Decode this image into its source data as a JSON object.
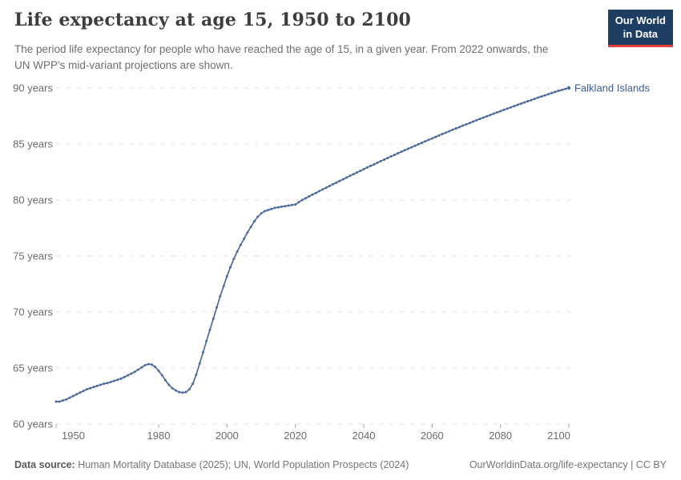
{
  "header": {
    "title": "Life expectancy at age 15, 1950 to 2100",
    "subtitle": "The period life expectancy for people who have reached the age of 15, in a given year. From 2022 onwards, the UN WPP's mid-variant projections are shown.",
    "logo": {
      "line1": "Our World",
      "line2": "in Data",
      "bg": "#1d3d63",
      "accent": "#e63e36"
    }
  },
  "footer": {
    "source_label": "Data source:",
    "source_text": " Human Mortality Database (2025); UN, World Population Prospects (2024)",
    "link_text": "OurWorldinData.org/life-expectancy | CC BY"
  },
  "chart_data": {
    "type": "line",
    "title": "Life expectancy at age 15, 1950 to 2100",
    "entity_label": "Falkland Islands",
    "color": "#4c6a9c",
    "entity_label_color": "#3b5b96",
    "grid_color": "#e0e0e0",
    "tick_text_color": "#6b6b6b",
    "tick_mark_color": "#a8a8a8",
    "grid": true,
    "legend_position": "end-of-line-label",
    "projection_from": 2022,
    "x_range": [
      1950,
      2100
    ],
    "y_range": [
      60,
      90
    ],
    "x_ticks": [
      1950,
      1980,
      2000,
      2020,
      2040,
      2060,
      2080,
      2100
    ],
    "y_ticks": [
      {
        "value": 60,
        "label": "60 years"
      },
      {
        "value": 65,
        "label": "65 years"
      },
      {
        "value": 70,
        "label": "70 years"
      },
      {
        "value": 75,
        "label": "75 years"
      },
      {
        "value": 80,
        "label": "80 years"
      },
      {
        "value": 85,
        "label": "85 years"
      },
      {
        "value": 90,
        "label": "90 years"
      }
    ],
    "series": [
      {
        "name": "Falkland Islands",
        "start_year": 1950,
        "values": [
          62.0,
          62.0,
          62.1,
          62.2,
          62.35,
          62.5,
          62.65,
          62.8,
          62.95,
          63.1,
          63.2,
          63.3,
          63.4,
          63.5,
          63.6,
          63.65,
          63.75,
          63.85,
          63.95,
          64.05,
          64.2,
          64.35,
          64.5,
          64.65,
          64.85,
          65.05,
          65.25,
          65.35,
          65.3,
          65.1,
          64.75,
          64.35,
          63.9,
          63.5,
          63.2,
          63.0,
          62.85,
          62.8,
          62.85,
          63.1,
          63.6,
          64.4,
          65.4,
          66.4,
          67.4,
          68.4,
          69.4,
          70.4,
          71.4,
          72.3,
          73.2,
          74.0,
          74.75,
          75.4,
          76.0,
          76.55,
          77.1,
          77.6,
          78.1,
          78.5,
          78.8,
          79.0,
          79.1,
          79.2,
          79.3,
          79.35,
          79.4,
          79.45,
          79.5,
          79.55,
          79.6,
          79.8,
          80.0,
          80.16,
          80.32,
          80.48,
          80.63,
          80.79,
          80.95,
          81.1,
          81.25,
          81.41,
          81.56,
          81.71,
          81.86,
          82.01,
          82.16,
          82.31,
          82.46,
          82.6,
          82.75,
          82.9,
          83.04,
          83.18,
          83.33,
          83.47,
          83.61,
          83.75,
          83.89,
          84.03,
          84.17,
          84.3,
          84.44,
          84.58,
          84.71,
          84.84,
          84.98,
          85.11,
          85.24,
          85.37,
          85.5,
          85.63,
          85.76,
          85.89,
          86.01,
          86.14,
          86.27,
          86.39,
          86.51,
          86.64,
          86.76,
          86.88,
          87.0,
          87.12,
          87.24,
          87.36,
          87.47,
          87.59,
          87.71,
          87.82,
          87.93,
          88.05,
          88.16,
          88.27,
          88.38,
          88.49,
          88.6,
          88.71,
          88.82,
          88.92,
          89.03,
          89.14,
          89.24,
          89.34,
          89.45,
          89.55,
          89.65,
          89.75,
          89.83,
          89.92,
          90.0
        ]
      }
    ]
  }
}
